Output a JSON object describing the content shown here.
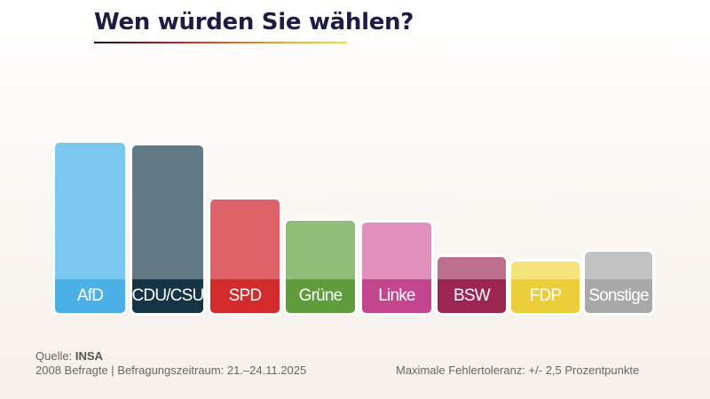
{
  "chart_data": {
    "type": "bar",
    "title": "Wen würden Sie wählen?",
    "categories": [
      "AfD",
      "CDU/CSU",
      "SPD",
      "Grüne",
      "Linke",
      "BSW",
      "FDP",
      "Sonstige"
    ],
    "values": [
      26,
      25.5,
      15,
      11,
      10.5,
      4,
      3,
      5
    ],
    "colors_top": [
      "#7ac8f0",
      "#627a85",
      "#df6268",
      "#90bd78",
      "#e18fbd",
      "#bd6f8e",
      "#f5e27a",
      "#c2c2c2"
    ],
    "colors_label": [
      "#4cb0e8",
      "#173346",
      "#d32b2b",
      "#5e9c3c",
      "#c3458d",
      "#9c2650",
      "#ecce3a",
      "#a8a8a8"
    ],
    "grid": false,
    "xlabel": "",
    "ylabel": ""
  },
  "footer": {
    "source_label": "Quelle:",
    "source": "INSA",
    "details": "2008 Befragte | Befragungszeitraum: 21.–24.11.2025",
    "tolerance": "Maximale Fehlertoleranz: +/- 2,5 Prozentpunkte"
  }
}
